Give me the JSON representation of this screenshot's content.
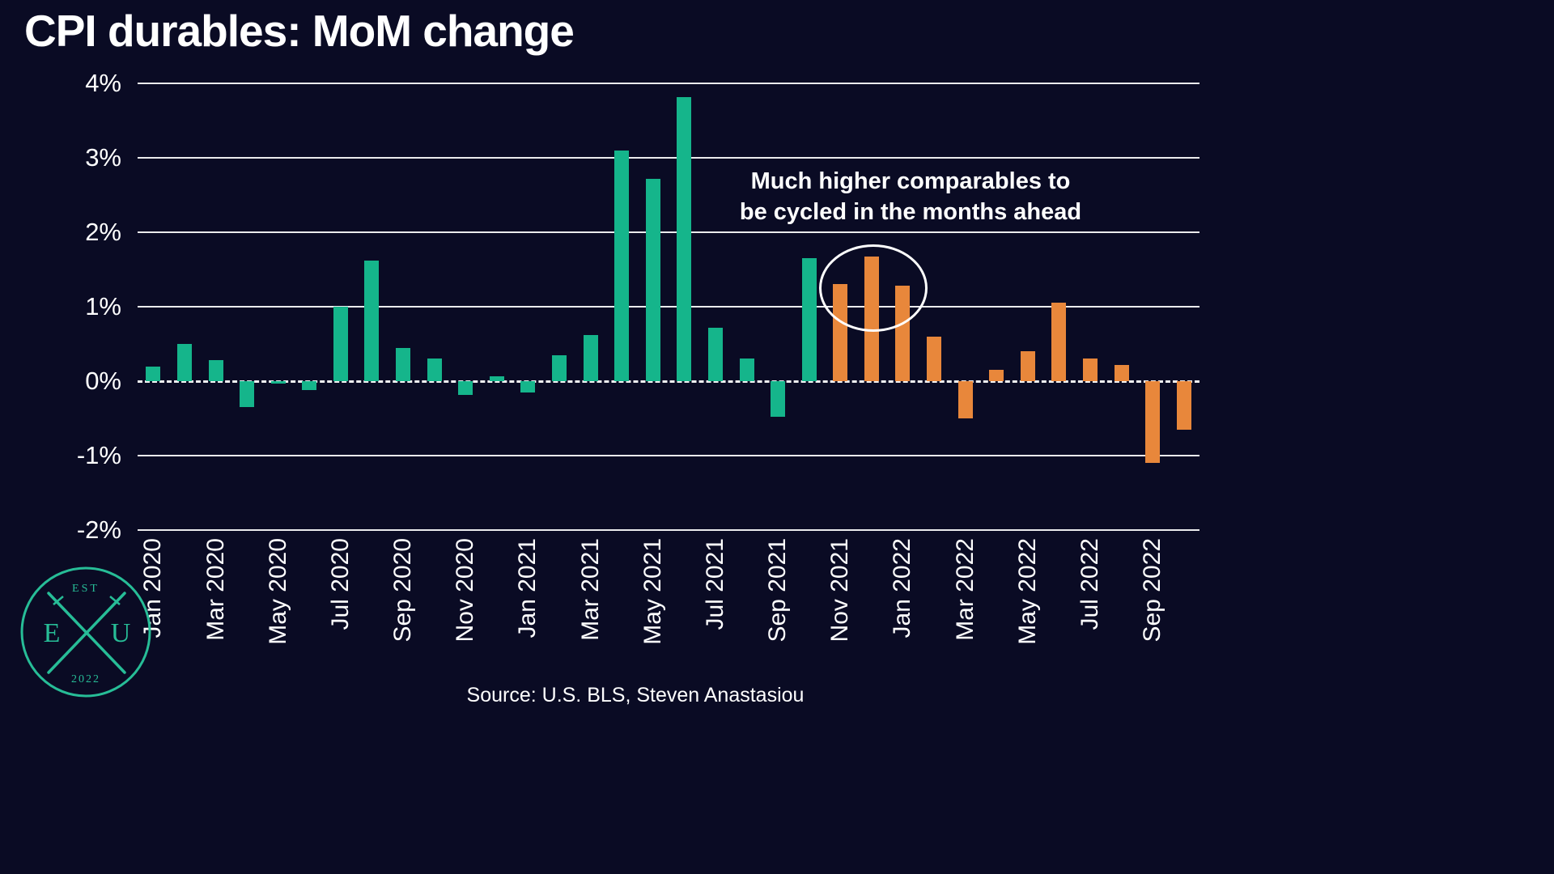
{
  "annotation": {
    "line1": "Much higher comparables to",
    "line2": "be cycled in the months ahead"
  },
  "source": "Source: U.S. BLS, Steven Anastasiou",
  "logo": {
    "est": "EST",
    "year": "2022",
    "left_letter": "E",
    "right_letter": "U",
    "accent_color": "#27bd97"
  },
  "chart_data": {
    "type": "bar",
    "title": "CPI durables: MoM change",
    "xlabel": "",
    "ylabel": "",
    "ylim": [
      -2,
      4
    ],
    "grid": true,
    "zero_line": "dashed",
    "yticks": [
      4,
      3,
      2,
      1,
      0,
      -1,
      -2
    ],
    "ytick_labels": [
      "4%",
      "3%",
      "2%",
      "1%",
      "0%",
      "-1%",
      "-2%"
    ],
    "xtick_every": 2,
    "categories": [
      "Jan 2020",
      "Feb 2020",
      "Mar 2020",
      "Apr 2020",
      "May 2020",
      "Jun 2020",
      "Jul 2020",
      "Aug 2020",
      "Sep 2020",
      "Oct 2020",
      "Nov 2020",
      "Dec 2020",
      "Jan 2021",
      "Feb 2021",
      "Mar 2021",
      "Apr 2021",
      "May 2021",
      "Jun 2021",
      "Jul 2021",
      "Aug 2021",
      "Sep 2021",
      "Oct 2021",
      "Nov 2021",
      "Dec 2021",
      "Jan 2022",
      "Feb 2022",
      "Mar 2022",
      "Apr 2022",
      "May 2022",
      "Jun 2022",
      "Jul 2022",
      "Aug 2022",
      "Sep 2022",
      "Oct 2022"
    ],
    "values": [
      0.2,
      0.5,
      0.28,
      -0.35,
      -0.03,
      -0.12,
      1.0,
      1.62,
      0.45,
      0.3,
      -0.18,
      0.07,
      -0.15,
      0.35,
      0.62,
      3.1,
      2.72,
      3.82,
      0.72,
      0.3,
      -0.48,
      1.65,
      1.3,
      1.67,
      1.28,
      0.6,
      -0.5,
      0.15,
      0.4,
      1.05,
      0.3,
      0.22,
      -1.1,
      -0.65
    ],
    "color_split_index": 22,
    "series_colors": {
      "green": "#15b58b",
      "orange": "#e8873b"
    },
    "background_color": "#0a0b24",
    "legend": "none"
  }
}
